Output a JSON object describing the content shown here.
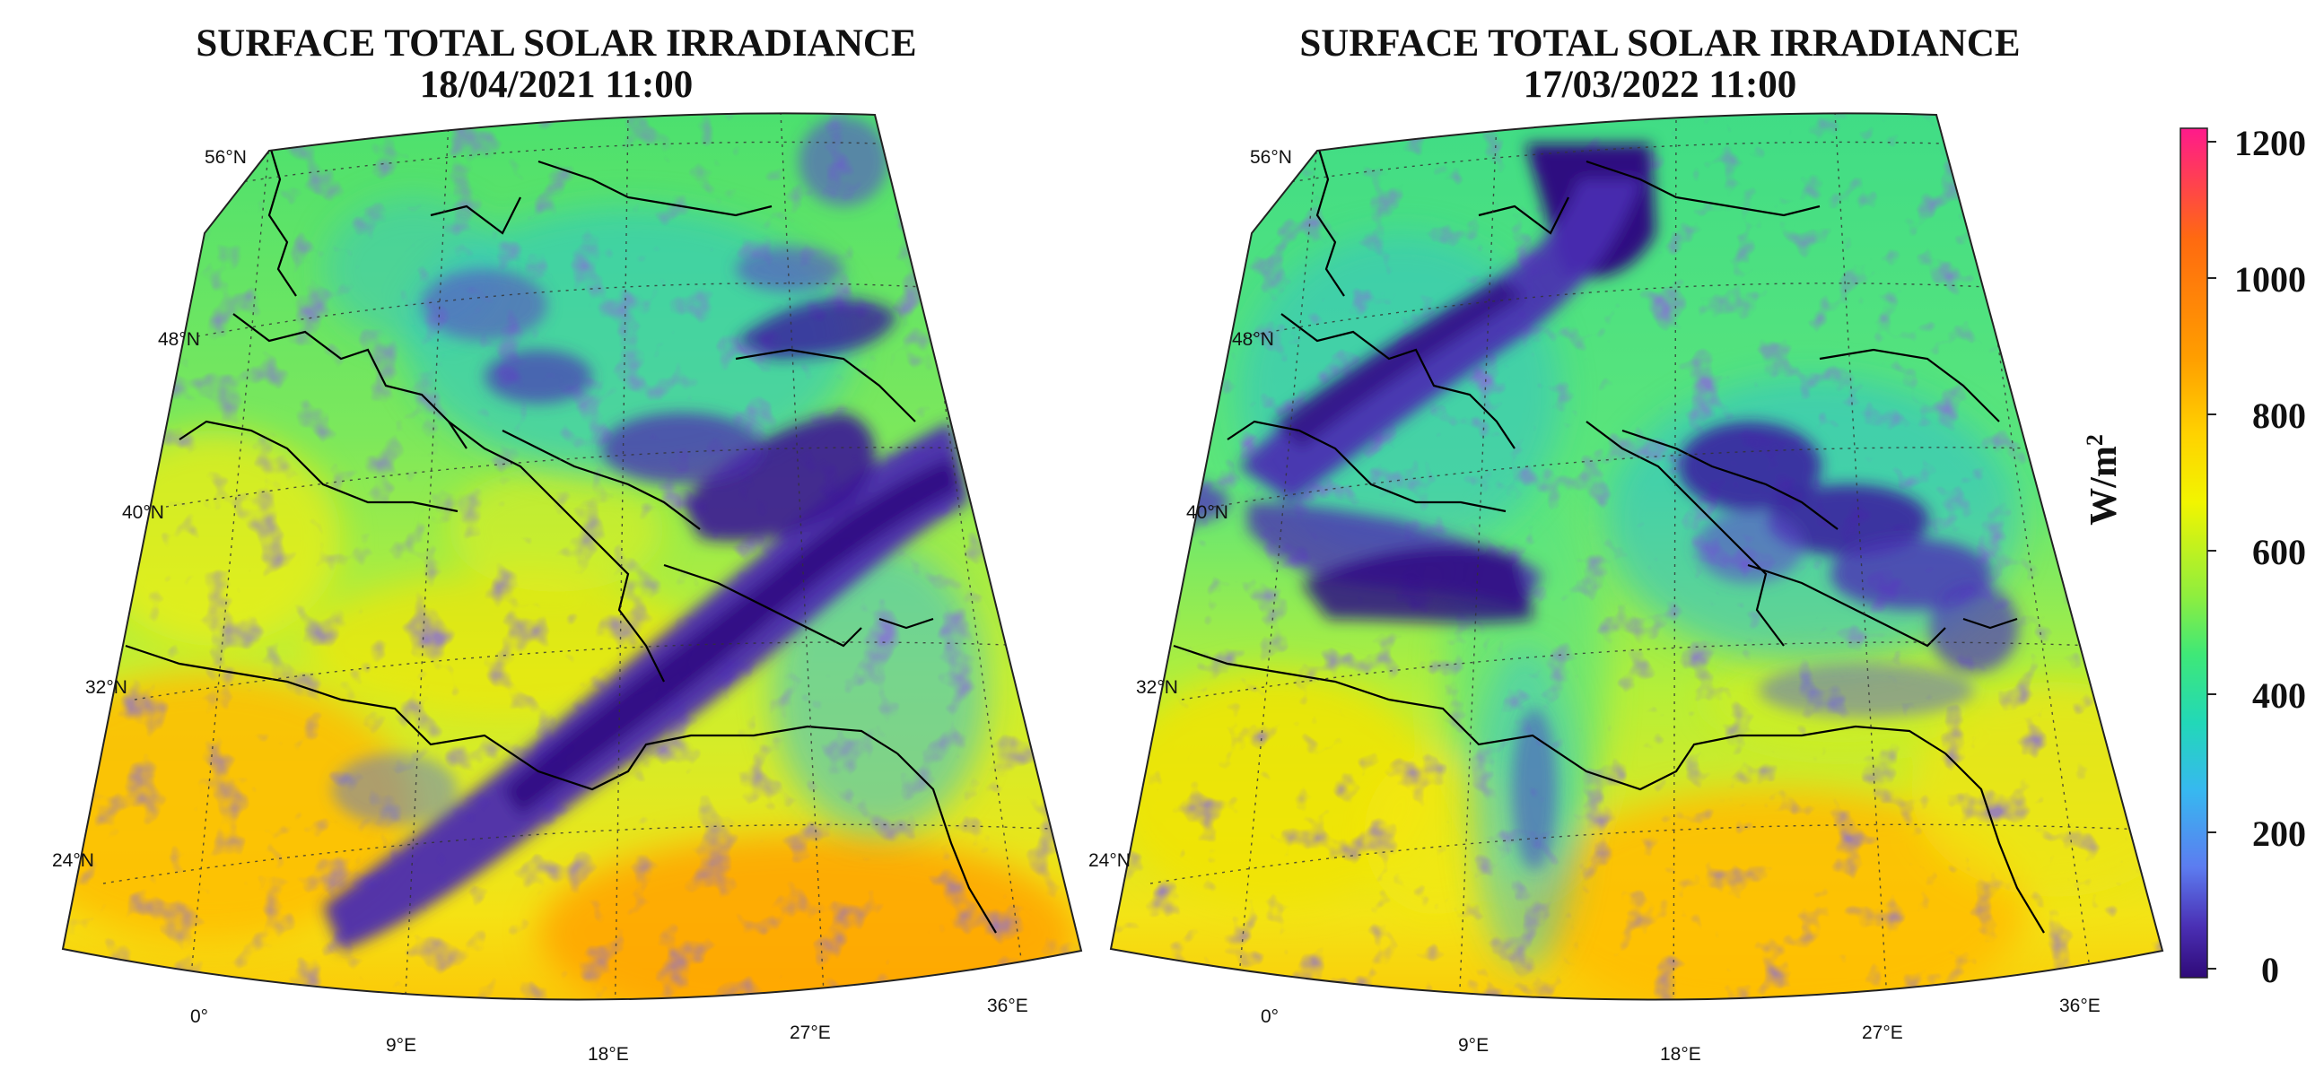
{
  "panels": [
    {
      "title_line1": "SURFACE TOTAL SOLAR IRRADIANCE",
      "title_line2": "18/04/2021 11:00",
      "lat_labels": [
        "56°N",
        "48°N",
        "40°N",
        "32°N",
        "24°N"
      ],
      "lon_labels": [
        "0°",
        "9°E",
        "18°E",
        "27°E",
        "36°E"
      ]
    },
    {
      "title_line1": "SURFACE TOTAL SOLAR IRRADIANCE",
      "title_line2": "17/03/2022 11:00",
      "lat_labels": [
        "56°N",
        "48°N",
        "40°N",
        "32°N",
        "24°N"
      ],
      "lon_labels": [
        "0°",
        "9°E",
        "18°E",
        "27°E",
        "36°E"
      ]
    }
  ],
  "colorbar": {
    "unit_base": "W/m",
    "unit_exp": "2",
    "ticks": [
      "1200",
      "1000",
      "800",
      "600",
      "400",
      "200",
      "0"
    ],
    "colors": [
      "#ff1a8c",
      "#ff6a10",
      "#ff9e00",
      "#ffd200",
      "#f5f500",
      "#a8f23a",
      "#3ee878",
      "#22d8b8",
      "#37b8f0",
      "#5c7cf0",
      "#4a2fb4",
      "#2f0a78"
    ]
  }
}
